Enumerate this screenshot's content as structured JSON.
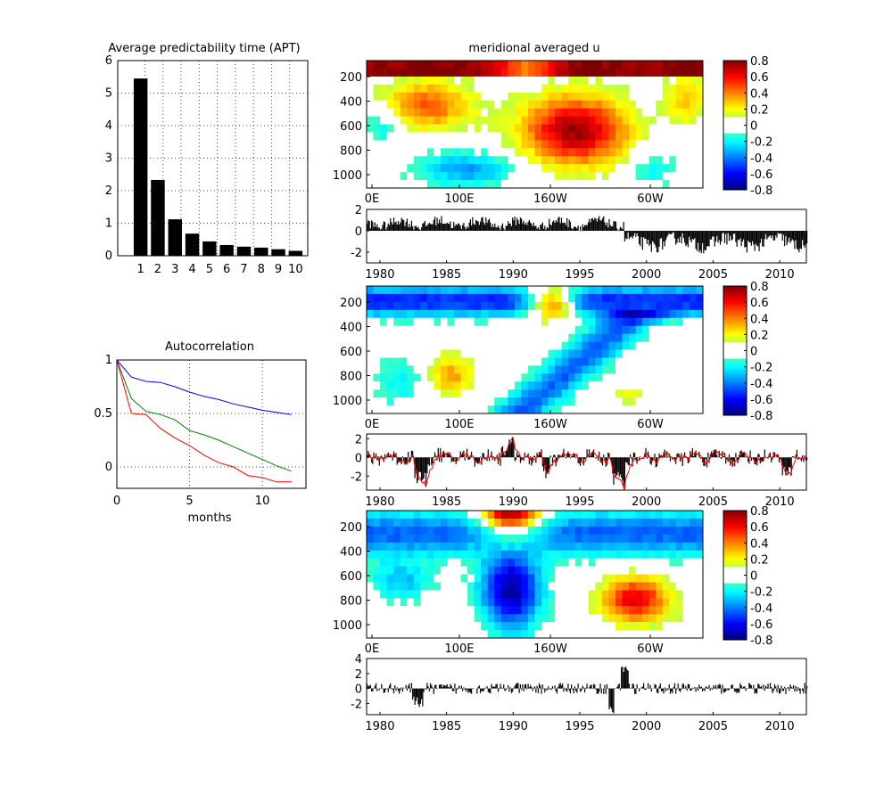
{
  "figure": {
    "apt_title": "Average predictability time (APT)",
    "autocorr_title": "Autocorrelation",
    "autocorr_xlabel": "months",
    "section_title": "meridional averaged u"
  },
  "chart_data": [
    {
      "id": "apt",
      "type": "bar",
      "title": "Average predictability time (APT)",
      "categories": [
        "1",
        "2",
        "3",
        "4",
        "5",
        "6",
        "7",
        "8",
        "9",
        "10"
      ],
      "values": [
        5.45,
        2.33,
        1.12,
        0.68,
        0.44,
        0.33,
        0.28,
        0.25,
        0.2,
        0.15
      ],
      "ylim": [
        0,
        6
      ],
      "yticks": [
        0,
        1,
        2,
        3,
        4,
        5,
        6
      ],
      "grid": true
    },
    {
      "id": "autocorrelation",
      "type": "line",
      "title": "Autocorrelation",
      "xlabel": "months",
      "xlim": [
        0,
        13
      ],
      "ylim": [
        -0.2,
        1
      ],
      "xticks": [
        0,
        5,
        10
      ],
      "yticks": [
        0,
        0.5,
        1
      ],
      "grid": true,
      "x": [
        0,
        1,
        2,
        3,
        4,
        5,
        6,
        7,
        8,
        9,
        10,
        11,
        12
      ],
      "series": [
        {
          "color": "#0000ff",
          "values": [
            1,
            0.84,
            0.8,
            0.79,
            0.75,
            0.7,
            0.66,
            0.63,
            0.59,
            0.56,
            0.53,
            0.51,
            0.49
          ]
        },
        {
          "color": "#008000",
          "values": [
            1,
            0.64,
            0.52,
            0.49,
            0.44,
            0.34,
            0.3,
            0.25,
            0.19,
            0.13,
            0.07,
            0.01,
            -0.04
          ]
        },
        {
          "color": "#ff0000",
          "values": [
            1,
            0.5,
            0.49,
            0.36,
            0.27,
            0.2,
            0.11,
            0.04,
            0.0,
            -0.08,
            -0.1,
            -0.14,
            -0.14
          ]
        }
      ]
    },
    {
      "id": "pattern1",
      "type": "heatmap",
      "title": "meridional averaged u",
      "xticks": [
        "0E",
        "100E",
        "160W",
        "60W"
      ],
      "yticks": [
        "200",
        "400",
        "600",
        "800",
        "1000"
      ],
      "colorbar_ticks": [
        "0.8",
        "0.6",
        "0.4",
        "0.2",
        "0",
        "-0.2",
        "-0.4",
        "-0.6",
        "-0.8"
      ],
      "clim": [
        -0.8,
        0.8
      ]
    },
    {
      "id": "pc1",
      "type": "bar",
      "xlim": [
        1979,
        2012
      ],
      "ylim": [
        -3,
        2
      ],
      "yticks": [
        "2",
        "0",
        "-2"
      ],
      "xticks": [
        "1980",
        "1985",
        "1990",
        "1995",
        "2000",
        "2005",
        "2010"
      ]
    },
    {
      "id": "pattern2",
      "type": "heatmap",
      "xticks": [
        "0E",
        "100E",
        "160W",
        "60W"
      ],
      "yticks": [
        "200",
        "400",
        "600",
        "800",
        "1000"
      ],
      "colorbar_ticks": [
        "0.8",
        "0.6",
        "0.4",
        "0.2",
        "0",
        "-0.2",
        "-0.4",
        "-0.6",
        "-0.8"
      ],
      "clim": [
        -0.8,
        0.8
      ]
    },
    {
      "id": "pc2",
      "type": "bar",
      "xlim": [
        1979,
        2012
      ],
      "ylim": [
        -3.5,
        2.5
      ],
      "yticks": [
        "2",
        "0",
        "-2"
      ],
      "xticks": [
        "1980",
        "1985",
        "1990",
        "1995",
        "2000",
        "2005",
        "2010"
      ],
      "overlay_color": "#ff0000"
    },
    {
      "id": "pattern3",
      "type": "heatmap",
      "xticks": [
        "0E",
        "100E",
        "160W",
        "60W"
      ],
      "yticks": [
        "200",
        "400",
        "600",
        "800",
        "1000"
      ],
      "colorbar_ticks": [
        "0.8",
        "0.6",
        "0.4",
        "0.2",
        "0",
        "-0.2",
        "-0.4",
        "-0.6",
        "-0.8"
      ],
      "clim": [
        -0.8,
        0.8
      ]
    },
    {
      "id": "pc3",
      "type": "bar",
      "xlim": [
        1979,
        2012
      ],
      "ylim": [
        -3.5,
        4
      ],
      "yticks": [
        "4",
        "2",
        "0",
        "-2"
      ],
      "xticks": [
        "1980",
        "1985",
        "1990",
        "1995",
        "2000",
        "2005",
        "2010"
      ]
    }
  ]
}
